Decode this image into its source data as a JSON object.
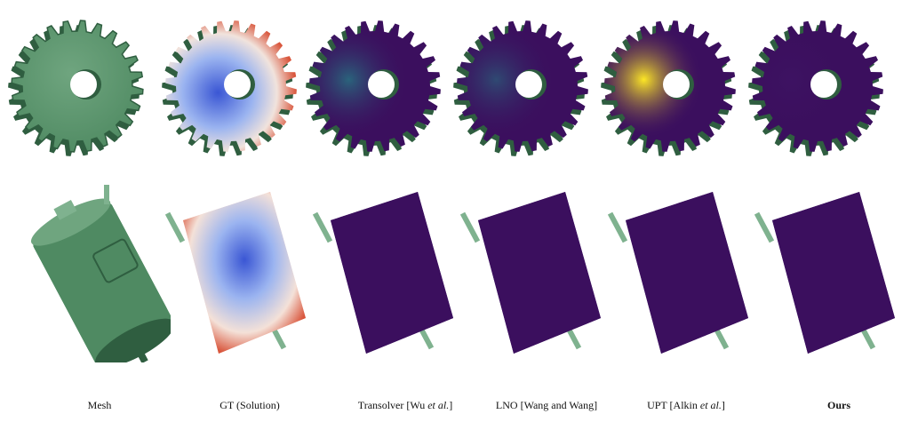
{
  "figure": {
    "columns": [
      {
        "id": "mesh",
        "label": "Mesh",
        "parts": [
          {
            "t": "Mesh"
          }
        ]
      },
      {
        "id": "gt",
        "label": "GT (Solution)",
        "parts": [
          {
            "t": "GT (Solution)"
          }
        ]
      },
      {
        "id": "transolver",
        "label": "Transolver [Wu et al.]",
        "parts": [
          {
            "t": "Transolver [Wu "
          },
          {
            "t": "et al.",
            "i": true
          },
          {
            "t": "]"
          }
        ]
      },
      {
        "id": "lno",
        "label": "LNO [Wang and Wang]",
        "parts": [
          {
            "t": "LNO [Wang and Wang]"
          }
        ]
      },
      {
        "id": "upt",
        "label": "UPT [Alkin et al.]",
        "parts": [
          {
            "t": "UPT [Alkin "
          },
          {
            "t": "et al.",
            "i": true
          },
          {
            "t": "]"
          }
        ]
      },
      {
        "id": "ours",
        "label": "Ours",
        "parts": [
          {
            "t": "Ours",
            "b": true
          }
        ]
      }
    ],
    "rows": [
      "gear",
      "motor"
    ],
    "colors": {
      "mesh_green": "#4f8a62",
      "mesh_dark": "#2f5e40",
      "viridis_dark": "#3b0f5e",
      "viridis_teal": "#21918c",
      "viridis_yellow": "#fde725",
      "gt_blue": "#3a56d4",
      "gt_red": "#d9553b"
    },
    "error_intensity": {
      "transolver": 0.55,
      "lno": 0.35,
      "upt": 0.9,
      "ours": 0.08
    }
  }
}
